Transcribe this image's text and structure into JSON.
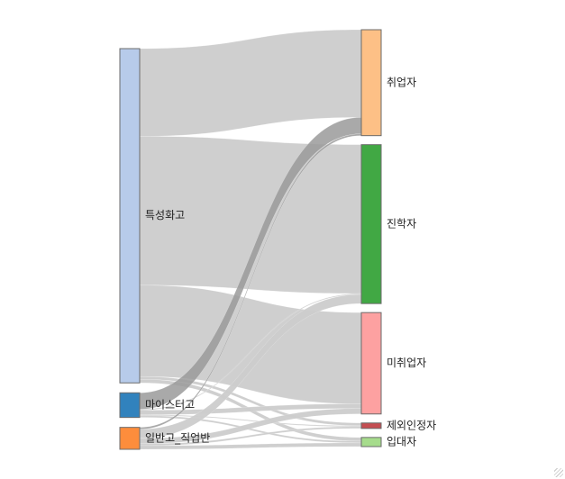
{
  "chart_data": {
    "type": "sankey",
    "sources": [
      {
        "name": "특성화고",
        "color": "#b7cbea"
      },
      {
        "name": "마이스터고",
        "color": "#3182bd"
      },
      {
        "name": "일반고_직업반",
        "color": "#fd8d3c"
      }
    ],
    "targets": [
      {
        "name": "취업자",
        "color": "#fdc086"
      },
      {
        "name": "진학자",
        "color": "#41a844"
      },
      {
        "name": "미취업자",
        "color": "#fda1a1"
      },
      {
        "name": "제외인정자",
        "color": "#c44e52"
      },
      {
        "name": "입대자",
        "color": "#a6dc8c"
      }
    ],
    "links": [
      {
        "source": "특성화고",
        "target": "취업자",
        "value": 96
      },
      {
        "source": "특성화고",
        "target": "진학자",
        "value": 163
      },
      {
        "source": "특성화고",
        "target": "미취업자",
        "value": 100
      },
      {
        "source": "특성화고",
        "target": "제외인정자",
        "value": 3
      },
      {
        "source": "특성화고",
        "target": "입대자",
        "value": 4
      },
      {
        "source": "마이스터고",
        "target": "취업자",
        "value": 18
      },
      {
        "source": "마이스터고",
        "target": "진학자",
        "value": 1
      },
      {
        "source": "마이스터고",
        "target": "미취업자",
        "value": 5
      },
      {
        "source": "마이스터고",
        "target": "제외인정자",
        "value": 1
      },
      {
        "source": "마이스터고",
        "target": "입대자",
        "value": 2
      },
      {
        "source": "일반고_직업반",
        "target": "취업자",
        "value": 2
      },
      {
        "source": "일반고_직업반",
        "target": "진학자",
        "value": 10
      },
      {
        "source": "일반고_직업반",
        "target": "미취업자",
        "value": 6
      },
      {
        "source": "일반고_직업반",
        "target": "제외인정자",
        "value": 2
      },
      {
        "source": "일반고_직업반",
        "target": "입대자",
        "value": 4
      }
    ],
    "link_color": "#cccccc",
    "link_highlight_color": "#9a9a9a"
  }
}
